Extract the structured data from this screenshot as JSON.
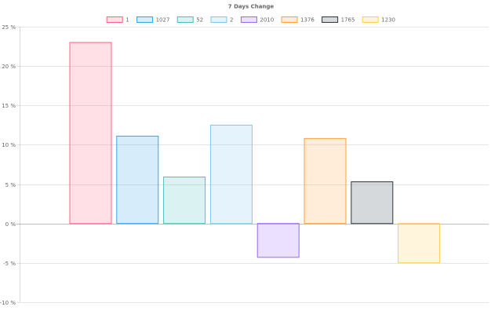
{
  "chart_data": {
    "type": "bar",
    "title": "7 Days Change",
    "ylim": [
      -10,
      25
    ],
    "ytick_step": 5,
    "ytick_suffix": " %",
    "grid": true,
    "legend_position": "top",
    "series": [
      {
        "name": "1",
        "value": 23.0,
        "fill": "#ff6384",
        "stroke": "#ff6384"
      },
      {
        "name": "1027",
        "value": 11.1,
        "fill": "#36a2eb",
        "stroke": "#36a2eb"
      },
      {
        "name": "52",
        "value": 5.9,
        "fill": "#4bc0c0",
        "stroke": "#4bc0c0"
      },
      {
        "name": "2",
        "value": 12.5,
        "fill": "#7ec8ee",
        "stroke": "#7ec8ee"
      },
      {
        "name": "2010",
        "value": -4.3,
        "fill": "#9966ff",
        "stroke": "#9966ff"
      },
      {
        "name": "1376",
        "value": 10.8,
        "fill": "#ff9f40",
        "stroke": "#ff9f40"
      },
      {
        "name": "1765",
        "value": 5.3,
        "fill": "#8a9199",
        "stroke": "#2f353b"
      },
      {
        "name": "1230",
        "value": -5.0,
        "fill": "#ffcd56",
        "stroke": "#ffcd56"
      }
    ]
  }
}
